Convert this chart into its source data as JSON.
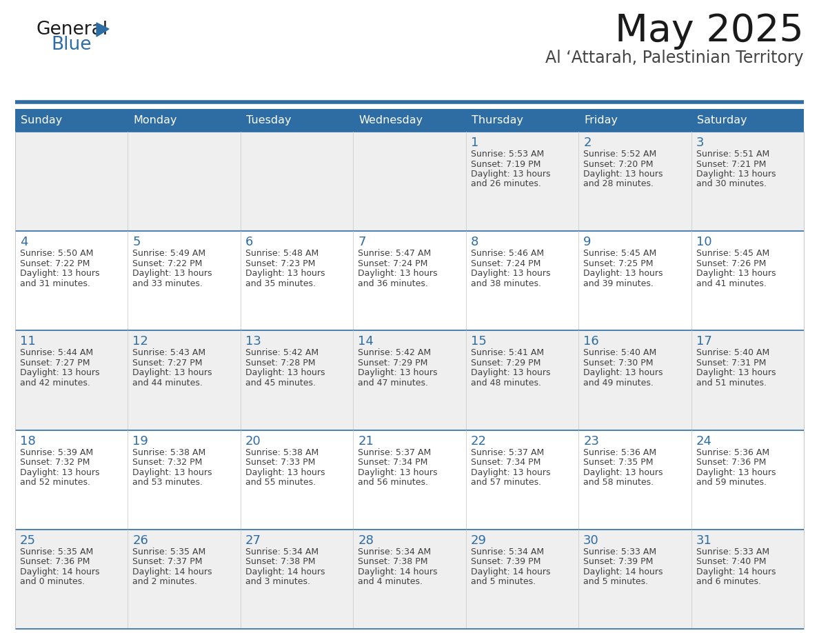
{
  "title": "May 2025",
  "subtitle": "Al ‘Attarah, Palestinian Territory",
  "header_bg": "#2E6DA4",
  "header_text_color": "#FFFFFF",
  "cell_bg_light": "#EFEFEF",
  "cell_bg_white": "#FFFFFF",
  "border_color": "#2E6DA4",
  "day_headers": [
    "Sunday",
    "Monday",
    "Tuesday",
    "Wednesday",
    "Thursday",
    "Friday",
    "Saturday"
  ],
  "text_color": "#404040",
  "number_color": "#2E6DA4",
  "title_color": "#1a1a1a",
  "subtitle_color": "#444444",
  "logo_color1": "#1a1a1a",
  "logo_color2": "#2E6DA4",
  "logo_triangle_color": "#2E6DA4",
  "weeks": [
    [
      {
        "day": null,
        "text": ""
      },
      {
        "day": null,
        "text": ""
      },
      {
        "day": null,
        "text": ""
      },
      {
        "day": null,
        "text": ""
      },
      {
        "day": 1,
        "text": "Sunrise: 5:53 AM\nSunset: 7:19 PM\nDaylight: 13 hours\nand 26 minutes."
      },
      {
        "day": 2,
        "text": "Sunrise: 5:52 AM\nSunset: 7:20 PM\nDaylight: 13 hours\nand 28 minutes."
      },
      {
        "day": 3,
        "text": "Sunrise: 5:51 AM\nSunset: 7:21 PM\nDaylight: 13 hours\nand 30 minutes."
      }
    ],
    [
      {
        "day": 4,
        "text": "Sunrise: 5:50 AM\nSunset: 7:22 PM\nDaylight: 13 hours\nand 31 minutes."
      },
      {
        "day": 5,
        "text": "Sunrise: 5:49 AM\nSunset: 7:22 PM\nDaylight: 13 hours\nand 33 minutes."
      },
      {
        "day": 6,
        "text": "Sunrise: 5:48 AM\nSunset: 7:23 PM\nDaylight: 13 hours\nand 35 minutes."
      },
      {
        "day": 7,
        "text": "Sunrise: 5:47 AM\nSunset: 7:24 PM\nDaylight: 13 hours\nand 36 minutes."
      },
      {
        "day": 8,
        "text": "Sunrise: 5:46 AM\nSunset: 7:24 PM\nDaylight: 13 hours\nand 38 minutes."
      },
      {
        "day": 9,
        "text": "Sunrise: 5:45 AM\nSunset: 7:25 PM\nDaylight: 13 hours\nand 39 minutes."
      },
      {
        "day": 10,
        "text": "Sunrise: 5:45 AM\nSunset: 7:26 PM\nDaylight: 13 hours\nand 41 minutes."
      }
    ],
    [
      {
        "day": 11,
        "text": "Sunrise: 5:44 AM\nSunset: 7:27 PM\nDaylight: 13 hours\nand 42 minutes."
      },
      {
        "day": 12,
        "text": "Sunrise: 5:43 AM\nSunset: 7:27 PM\nDaylight: 13 hours\nand 44 minutes."
      },
      {
        "day": 13,
        "text": "Sunrise: 5:42 AM\nSunset: 7:28 PM\nDaylight: 13 hours\nand 45 minutes."
      },
      {
        "day": 14,
        "text": "Sunrise: 5:42 AM\nSunset: 7:29 PM\nDaylight: 13 hours\nand 47 minutes."
      },
      {
        "day": 15,
        "text": "Sunrise: 5:41 AM\nSunset: 7:29 PM\nDaylight: 13 hours\nand 48 minutes."
      },
      {
        "day": 16,
        "text": "Sunrise: 5:40 AM\nSunset: 7:30 PM\nDaylight: 13 hours\nand 49 minutes."
      },
      {
        "day": 17,
        "text": "Sunrise: 5:40 AM\nSunset: 7:31 PM\nDaylight: 13 hours\nand 51 minutes."
      }
    ],
    [
      {
        "day": 18,
        "text": "Sunrise: 5:39 AM\nSunset: 7:32 PM\nDaylight: 13 hours\nand 52 minutes."
      },
      {
        "day": 19,
        "text": "Sunrise: 5:38 AM\nSunset: 7:32 PM\nDaylight: 13 hours\nand 53 minutes."
      },
      {
        "day": 20,
        "text": "Sunrise: 5:38 AM\nSunset: 7:33 PM\nDaylight: 13 hours\nand 55 minutes."
      },
      {
        "day": 21,
        "text": "Sunrise: 5:37 AM\nSunset: 7:34 PM\nDaylight: 13 hours\nand 56 minutes."
      },
      {
        "day": 22,
        "text": "Sunrise: 5:37 AM\nSunset: 7:34 PM\nDaylight: 13 hours\nand 57 minutes."
      },
      {
        "day": 23,
        "text": "Sunrise: 5:36 AM\nSunset: 7:35 PM\nDaylight: 13 hours\nand 58 minutes."
      },
      {
        "day": 24,
        "text": "Sunrise: 5:36 AM\nSunset: 7:36 PM\nDaylight: 13 hours\nand 59 minutes."
      }
    ],
    [
      {
        "day": 25,
        "text": "Sunrise: 5:35 AM\nSunset: 7:36 PM\nDaylight: 14 hours\nand 0 minutes."
      },
      {
        "day": 26,
        "text": "Sunrise: 5:35 AM\nSunset: 7:37 PM\nDaylight: 14 hours\nand 2 minutes."
      },
      {
        "day": 27,
        "text": "Sunrise: 5:34 AM\nSunset: 7:38 PM\nDaylight: 14 hours\nand 3 minutes."
      },
      {
        "day": 28,
        "text": "Sunrise: 5:34 AM\nSunset: 7:38 PM\nDaylight: 14 hours\nand 4 minutes."
      },
      {
        "day": 29,
        "text": "Sunrise: 5:34 AM\nSunset: 7:39 PM\nDaylight: 14 hours\nand 5 minutes."
      },
      {
        "day": 30,
        "text": "Sunrise: 5:33 AM\nSunset: 7:39 PM\nDaylight: 14 hours\nand 5 minutes."
      },
      {
        "day": 31,
        "text": "Sunrise: 5:33 AM\nSunset: 7:40 PM\nDaylight: 14 hours\nand 6 minutes."
      }
    ]
  ]
}
